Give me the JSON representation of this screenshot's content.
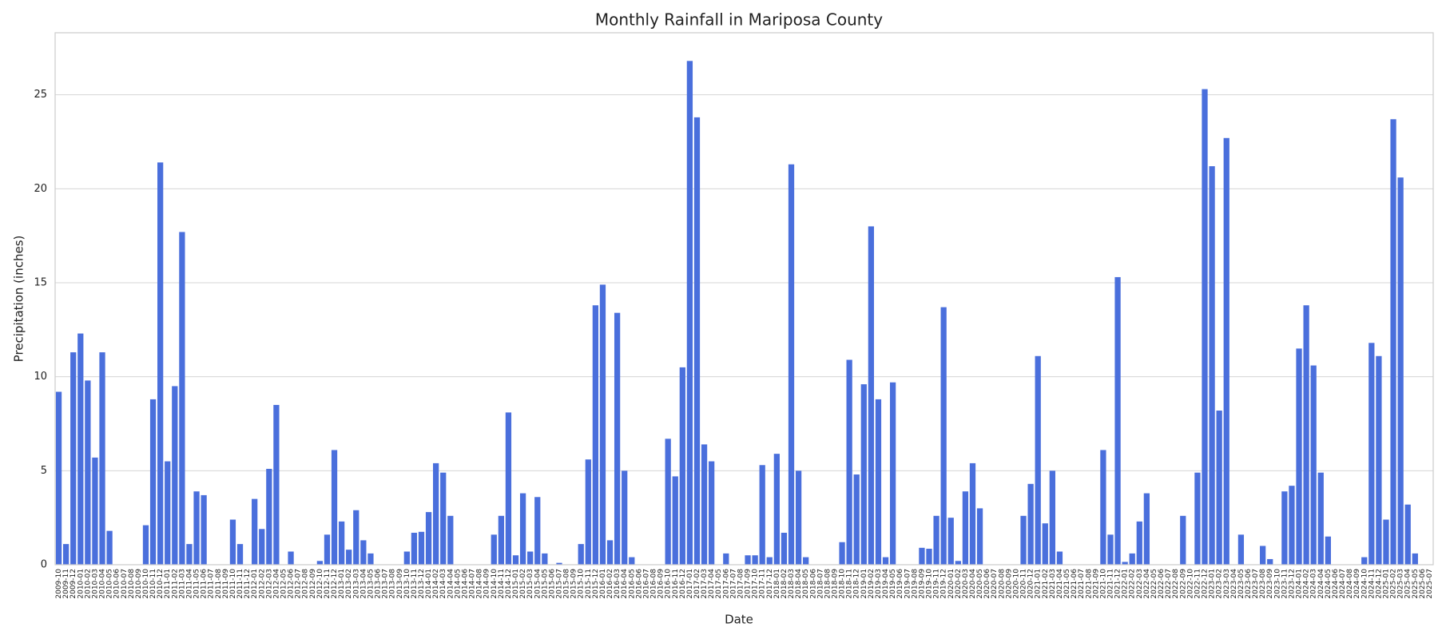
{
  "chart_data": {
    "type": "bar",
    "title": "Monthly Rainfall in Mariposa County",
    "x_label": "Date",
    "y_label": "Precipitation (inches)",
    "categories": [
      "2009-10",
      "2009-11",
      "2009-12",
      "2010-01",
      "2010-02",
      "2010-03",
      "2010-04",
      "2010-05",
      "2010-06",
      "2010-07",
      "2010-08",
      "2010-09",
      "2010-10",
      "2010-11",
      "2010-12",
      "2011-01",
      "2011-02",
      "2011-03",
      "2011-04",
      "2011-05",
      "2011-06",
      "2011-07",
      "2011-08",
      "2011-09",
      "2011-10",
      "2011-11",
      "2011-12",
      "2012-01",
      "2012-02",
      "2012-03",
      "2012-04",
      "2012-05",
      "2012-06",
      "2012-07",
      "2012-08",
      "2012-09",
      "2012-10",
      "2012-11",
      "2012-12",
      "2013-01",
      "2013-02",
      "2013-03",
      "2013-04",
      "2013-05",
      "2013-06",
      "2013-07",
      "2013-08",
      "2013-09",
      "2013-10",
      "2013-11",
      "2013-12",
      "2014-01",
      "2014-02",
      "2014-03",
      "2014-04",
      "2014-05",
      "2014-06",
      "2014-07",
      "2014-08",
      "2014-09",
      "2014-10",
      "2014-11",
      "2014-12",
      "2015-01",
      "2015-02",
      "2015-03",
      "2015-04",
      "2015-05",
      "2015-06",
      "2015-07",
      "2015-08",
      "2015-09",
      "2015-10",
      "2015-11",
      "2015-12",
      "2016-01",
      "2016-02",
      "2016-03",
      "2016-04",
      "2016-05",
      "2016-06",
      "2016-07",
      "2016-08",
      "2016-09",
      "2016-10",
      "2016-11",
      "2016-12",
      "2017-01",
      "2017-02",
      "2017-03",
      "2017-04",
      "2017-05",
      "2017-06",
      "2017-07",
      "2017-08",
      "2017-09",
      "2017-10",
      "2017-11",
      "2017-12",
      "2018-01",
      "2018-02",
      "2018-03",
      "2018-04",
      "2018-05",
      "2018-06",
      "2018-07",
      "2018-08",
      "2018-09",
      "2018-10",
      "2018-11",
      "2018-12",
      "2019-01",
      "2019-02",
      "2019-03",
      "2019-04",
      "2019-05",
      "2019-06",
      "2019-07",
      "2019-08",
      "2019-09",
      "2019-10",
      "2019-11",
      "2019-12",
      "2020-01",
      "2020-02",
      "2020-03",
      "2020-04",
      "2020-05",
      "2020-06",
      "2020-07",
      "2020-08",
      "2020-09",
      "2020-10",
      "2020-11",
      "2020-12",
      "2021-01",
      "2021-02",
      "2021-03",
      "2021-04",
      "2021-05",
      "2021-06",
      "2021-07",
      "2021-08",
      "2021-09",
      "2021-10",
      "2021-11",
      "2021-12",
      "2022-01",
      "2022-02",
      "2022-03",
      "2022-04",
      "2022-05",
      "2022-06",
      "2022-07",
      "2022-08",
      "2022-09",
      "2022-10",
      "2022-11",
      "2022-12",
      "2023-01",
      "2023-02",
      "2023-03",
      "2023-04",
      "2023-05",
      "2023-06",
      "2023-07",
      "2023-08",
      "2023-09",
      "2023-10",
      "2023-11",
      "2023-12",
      "2024-01",
      "2024-02",
      "2024-03",
      "2024-04",
      "2024-05",
      "2024-06",
      "2024-07",
      "2024-08",
      "2024-09",
      "2024-10",
      "2024-11",
      "2024-12",
      "2025-01",
      "2025-02",
      "2025-03",
      "2025-04",
      "2025-05",
      "2025-06",
      "2025-07"
    ],
    "values": [
      9.2,
      1.1,
      11.3,
      12.3,
      9.8,
      5.7,
      11.3,
      1.8,
      0,
      0,
      0,
      0,
      2.1,
      8.8,
      21.4,
      5.5,
      9.5,
      17.7,
      1.1,
      3.9,
      3.7,
      0,
      0,
      0,
      2.4,
      1.1,
      0,
      3.5,
      1.9,
      5.1,
      8.5,
      0,
      0.7,
      0,
      0,
      0,
      0.2,
      1.6,
      6.1,
      2.3,
      0.8,
      2.9,
      1.3,
      0.6,
      0,
      0,
      0,
      0,
      0.7,
      1.7,
      1.75,
      2.8,
      5.4,
      4.9,
      2.6,
      0,
      0,
      0,
      0,
      0,
      1.6,
      2.6,
      8.1,
      0.5,
      3.8,
      0.7,
      3.6,
      0.6,
      0,
      0.1,
      0,
      0,
      1.1,
      5.6,
      13.8,
      14.9,
      1.3,
      13.4,
      5.0,
      0.4,
      0,
      0,
      0,
      0,
      6.7,
      4.7,
      10.5,
      26.8,
      23.8,
      6.4,
      5.5,
      0,
      0.6,
      0,
      0,
      0.5,
      0.5,
      5.3,
      0.4,
      5.9,
      1.7,
      21.3,
      5.0,
      0.4,
      0,
      0,
      0,
      0,
      1.2,
      10.9,
      4.8,
      9.6,
      18.0,
      8.8,
      0.4,
      9.7,
      0,
      0,
      0,
      0.9,
      0.85,
      2.6,
      13.7,
      2.5,
      0.2,
      3.9,
      5.4,
      3.0,
      0,
      0,
      0,
      0,
      0,
      2.6,
      4.3,
      11.1,
      2.2,
      5.0,
      0.7,
      0,
      0,
      0,
      0,
      0,
      6.1,
      1.6,
      15.3,
      0.15,
      0.6,
      2.3,
      3.8,
      0,
      0,
      0,
      0,
      2.6,
      0,
      4.9,
      25.3,
      21.2,
      8.2,
      22.7,
      0,
      1.6,
      0,
      0,
      1.0,
      0.3,
      0,
      3.9,
      4.2,
      11.5,
      13.8,
      10.6,
      4.9,
      1.5,
      0,
      0,
      0,
      0,
      0.4,
      11.8,
      11.1,
      2.4,
      23.7,
      20.6,
      3.2,
      0.6,
      0,
      0
    ],
    "color": "#4a6fdc",
    "ylim": [
      0,
      28.3
    ],
    "yticks": [
      0,
      5,
      10,
      15,
      20,
      25
    ],
    "grid": true
  }
}
